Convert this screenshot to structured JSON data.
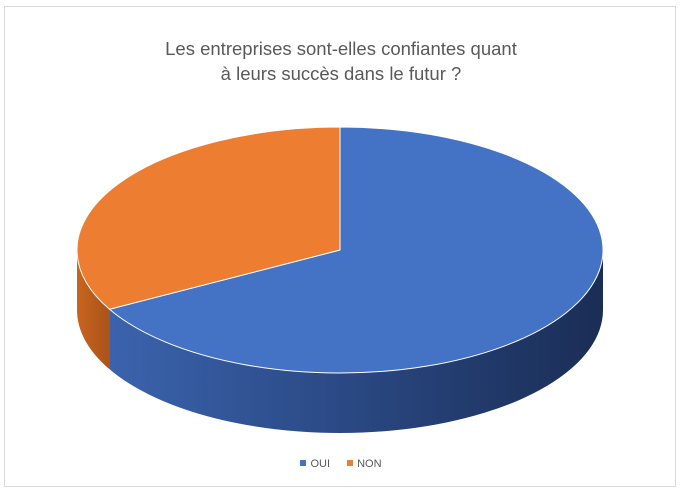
{
  "chart_data": {
    "type": "pie",
    "title_lines": [
      "Les entreprises sont-elles confiantes quant",
      "à leurs succès dans le futur ?"
    ],
    "slices": [
      {
        "label": "OUI",
        "value": 67,
        "color": "#4472C4"
      },
      {
        "label": "NON",
        "value": 33,
        "color": "#ED7D31"
      }
    ],
    "style": "3d",
    "legend_position": "bottom"
  }
}
